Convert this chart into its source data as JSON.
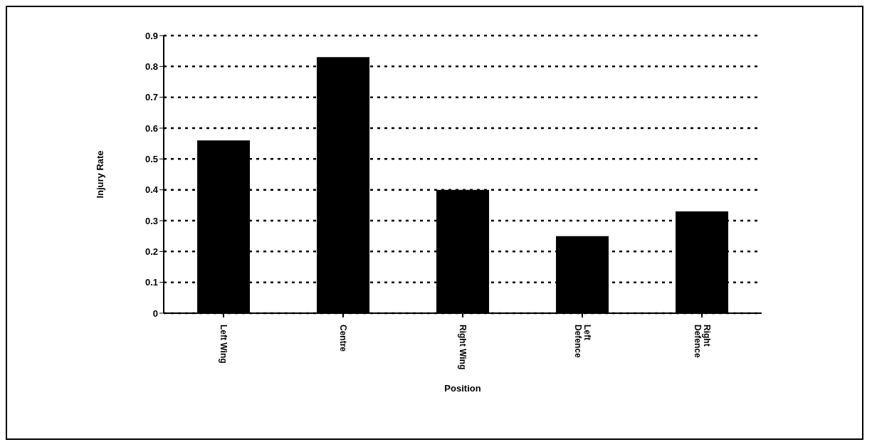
{
  "chart_data": {
    "type": "bar",
    "xlabel": "Position",
    "ylabel": "Injury Rate",
    "categories": [
      "Left Wing",
      "Centre",
      "Right Wing",
      "Left\nDefence",
      "Right\nDefence"
    ],
    "values": [
      0.56,
      0.83,
      0.4,
      0.25,
      0.33
    ],
    "color": "#000000",
    "ylim": [
      0,
      0.9
    ],
    "yticks": [
      0,
      0.1,
      0.2,
      0.3,
      0.4,
      0.5,
      0.6,
      0.7,
      0.8,
      0.9
    ],
    "grid": "y",
    "legend": false
  }
}
